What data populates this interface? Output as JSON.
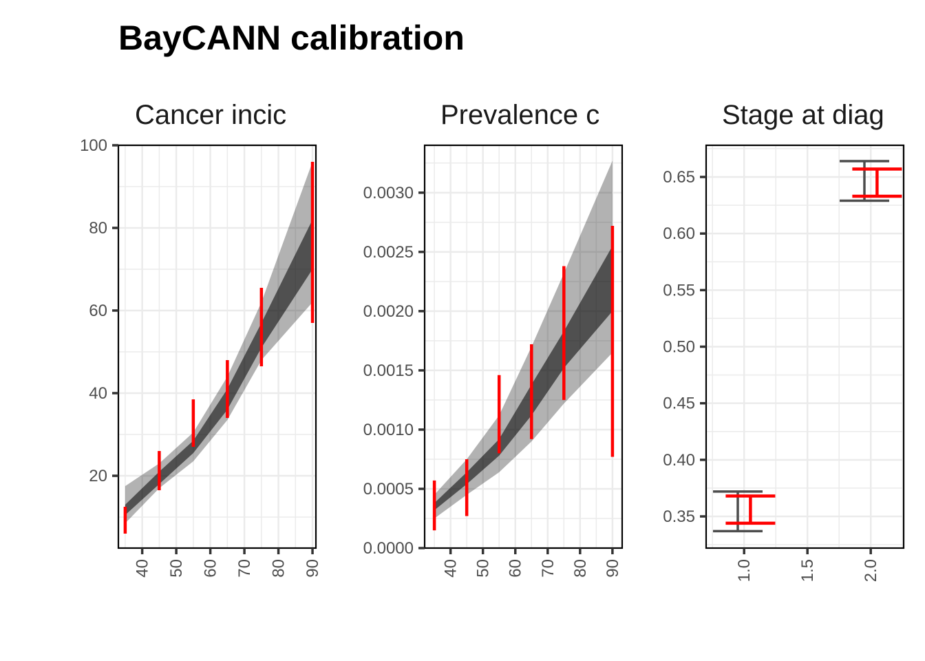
{
  "title": "BayCANN calibration",
  "colors": {
    "target": "#ff0000",
    "outer_band": "#b3b3b3",
    "inner_band": "#595959",
    "model_bar": "#4d4d4d",
    "grid": "#ebebeb",
    "axis": "#000000",
    "tick_text": "#4d4d4d"
  },
  "chart_data": [
    {
      "type": "line",
      "title": "Cancer incic",
      "xlabel": "",
      "ylabel": "",
      "xlim": [
        33,
        91
      ],
      "ylim": [
        2.5,
        100
      ],
      "xticks": [
        40,
        50,
        60,
        70,
        80,
        90
      ],
      "yticks": [
        20,
        40,
        60,
        80,
        100
      ],
      "x": [
        35,
        45,
        55,
        65,
        75,
        90
      ],
      "band_outer_lower": [
        8.5,
        17,
        23.5,
        33.5,
        48,
        62
      ],
      "band_outer_upper": [
        17.5,
        23,
        30.5,
        44,
        62,
        96
      ],
      "band_inner_lower": [
        10.5,
        18,
        25.5,
        36,
        51,
        70
      ],
      "band_inner_upper": [
        13,
        21,
        28.5,
        41,
        57,
        82
      ],
      "targets": [
        {
          "x": 35,
          "lower": 6,
          "upper": 12.5
        },
        {
          "x": 45,
          "lower": 16.5,
          "upper": 26
        },
        {
          "x": 55,
          "lower": 27,
          "upper": 38.5
        },
        {
          "x": 65,
          "lower": 34,
          "upper": 48
        },
        {
          "x": 75,
          "lower": 46.5,
          "upper": 65.5
        },
        {
          "x": 90,
          "lower": 57,
          "upper": 96
        }
      ]
    },
    {
      "type": "line",
      "title": "Prevalence c",
      "xlabel": "",
      "ylabel": "",
      "xlim": [
        32,
        93
      ],
      "ylim": [
        0,
        0.0034
      ],
      "xticks": [
        40,
        50,
        60,
        70,
        80,
        90
      ],
      "yticks": [
        "0.0000",
        "0.0005",
        "0.0010",
        "0.0015",
        "0.0020",
        "0.0025",
        "0.0030"
      ],
      "x": [
        35,
        45,
        55,
        65,
        75,
        90
      ],
      "band_outer_lower": [
        0.00025,
        0.00045,
        0.00064,
        0.0009,
        0.00122,
        0.00165
      ],
      "band_outer_upper": [
        0.00045,
        0.00075,
        0.00112,
        0.0017,
        0.00232,
        0.00327
      ],
      "band_inner_lower": [
        0.00032,
        0.00054,
        0.00078,
        0.00112,
        0.00152,
        0.002
      ],
      "band_inner_upper": [
        0.00038,
        0.00064,
        0.00092,
        0.00138,
        0.00183,
        0.00255
      ],
      "targets": [
        {
          "x": 35,
          "lower": 0.00015,
          "upper": 0.00057
        },
        {
          "x": 45,
          "lower": 0.00027,
          "upper": 0.00075
        },
        {
          "x": 55,
          "lower": 0.0008,
          "upper": 0.00146
        },
        {
          "x": 65,
          "lower": 0.00092,
          "upper": 0.00172
        },
        {
          "x": 75,
          "lower": 0.00125,
          "upper": 0.00238
        },
        {
          "x": 90,
          "lower": 0.00077,
          "upper": 0.00272
        }
      ]
    },
    {
      "type": "errorbar",
      "title": "Stage at diag",
      "xlabel": "",
      "ylabel": "",
      "xlim": [
        0.7,
        2.26
      ],
      "ylim": [
        0.322,
        0.678
      ],
      "xticks": [
        "1.0",
        "1.5",
        "2.0"
      ],
      "yticks": [
        "0.35",
        "0.40",
        "0.45",
        "0.50",
        "0.55",
        "0.60",
        "0.65"
      ],
      "model": [
        {
          "x": 0.95,
          "lower": 0.337,
          "upper": 0.372
        },
        {
          "x": 1.95,
          "lower": 0.629,
          "upper": 0.664
        }
      ],
      "targets": [
        {
          "x": 1.05,
          "lower": 0.344,
          "upper": 0.368
        },
        {
          "x": 2.05,
          "lower": 0.633,
          "upper": 0.657
        }
      ]
    }
  ]
}
